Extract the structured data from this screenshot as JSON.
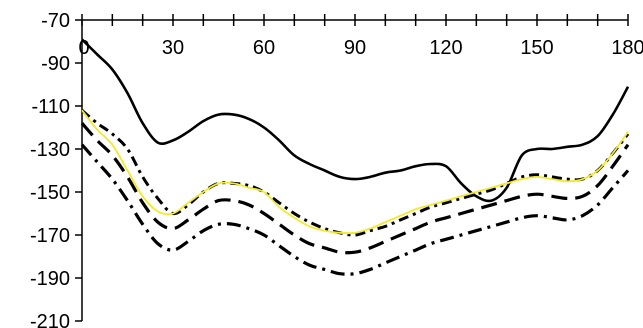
{
  "chart_data": {
    "type": "line",
    "title": "",
    "xlabel": "",
    "ylabel": "",
    "xlim": [
      0,
      180
    ],
    "ylim": [
      -210,
      -70
    ],
    "x_ticks": [
      0,
      30,
      60,
      90,
      120,
      150,
      180
    ],
    "y_ticks": [
      -70,
      -90,
      -110,
      -130,
      -150,
      -170,
      -190,
      -210
    ],
    "x_tick_labels": [
      "0",
      "30",
      "60",
      "90",
      "120",
      "150",
      "180"
    ],
    "y_tick_labels": [
      "-70",
      "-90",
      "-110",
      "-130",
      "-150",
      "-170",
      "-190",
      "-210"
    ],
    "x_minor_step": 10,
    "grid": false,
    "legend": "none",
    "series": [
      {
        "style": "solid",
        "color": "#000000",
        "points": [
          [
            0,
            -79
          ],
          [
            5,
            -86
          ],
          [
            10,
            -93
          ],
          [
            15,
            -104
          ],
          [
            20,
            -118
          ],
          [
            25,
            -127
          ],
          [
            30,
            -126
          ],
          [
            35,
            -122
          ],
          [
            40,
            -117
          ],
          [
            45,
            -114
          ],
          [
            50,
            -114
          ],
          [
            55,
            -116
          ],
          [
            60,
            -120
          ],
          [
            65,
            -126
          ],
          [
            70,
            -133
          ],
          [
            75,
            -137
          ],
          [
            80,
            -140
          ],
          [
            85,
            -143
          ],
          [
            90,
            -144
          ],
          [
            95,
            -143
          ],
          [
            100,
            -141
          ],
          [
            105,
            -140
          ],
          [
            110,
            -138
          ],
          [
            115,
            -137
          ],
          [
            120,
            -138
          ],
          [
            125,
            -146
          ],
          [
            130,
            -152
          ],
          [
            135,
            -154
          ],
          [
            140,
            -148
          ],
          [
            145,
            -133
          ],
          [
            150,
            -130
          ],
          [
            155,
            -130
          ],
          [
            160,
            -129
          ],
          [
            165,
            -128
          ],
          [
            170,
            -124
          ],
          [
            175,
            -114
          ],
          [
            180,
            -101
          ]
        ]
      },
      {
        "style": "solid",
        "color": "#f2ea2a",
        "points": [
          [
            0,
            -112
          ],
          [
            5,
            -121
          ],
          [
            10,
            -128
          ],
          [
            15,
            -140
          ],
          [
            20,
            -152
          ],
          [
            25,
            -159
          ],
          [
            30,
            -160
          ],
          [
            35,
            -155
          ],
          [
            40,
            -150
          ],
          [
            45,
            -146
          ],
          [
            50,
            -146
          ],
          [
            55,
            -148
          ],
          [
            60,
            -150
          ],
          [
            65,
            -157
          ],
          [
            70,
            -162
          ],
          [
            75,
            -166
          ],
          [
            80,
            -168
          ],
          [
            85,
            -169
          ],
          [
            90,
            -169
          ],
          [
            95,
            -167
          ],
          [
            100,
            -164
          ],
          [
            105,
            -161
          ],
          [
            110,
            -158
          ],
          [
            115,
            -156
          ],
          [
            120,
            -154
          ],
          [
            125,
            -152
          ],
          [
            130,
            -150
          ],
          [
            135,
            -148
          ],
          [
            140,
            -146
          ],
          [
            145,
            -144
          ],
          [
            150,
            -143
          ],
          [
            155,
            -144
          ],
          [
            160,
            -145
          ],
          [
            165,
            -144
          ],
          [
            170,
            -140
          ],
          [
            175,
            -132
          ],
          [
            180,
            -122
          ]
        ]
      },
      {
        "style": "dash-dot",
        "color": "#000000",
        "points": [
          [
            0,
            -112
          ],
          [
            5,
            -118
          ],
          [
            10,
            -123
          ],
          [
            15,
            -130
          ],
          [
            20,
            -143
          ],
          [
            25,
            -153
          ],
          [
            30,
            -160
          ],
          [
            35,
            -156
          ],
          [
            40,
            -150
          ],
          [
            45,
            -146
          ],
          [
            50,
            -146
          ],
          [
            55,
            -147
          ],
          [
            60,
            -150
          ],
          [
            65,
            -155
          ],
          [
            70,
            -160
          ],
          [
            75,
            -164
          ],
          [
            80,
            -167
          ],
          [
            85,
            -169
          ],
          [
            90,
            -170
          ],
          [
            95,
            -168
          ],
          [
            100,
            -166
          ],
          [
            105,
            -163
          ],
          [
            110,
            -160
          ],
          [
            115,
            -157
          ],
          [
            120,
            -155
          ],
          [
            125,
            -153
          ],
          [
            130,
            -151
          ],
          [
            135,
            -149
          ],
          [
            140,
            -146
          ],
          [
            145,
            -143
          ],
          [
            150,
            -142
          ],
          [
            155,
            -143
          ],
          [
            160,
            -144
          ],
          [
            165,
            -144
          ],
          [
            170,
            -140
          ],
          [
            175,
            -132
          ],
          [
            180,
            -123
          ]
        ]
      },
      {
        "style": "long-dash",
        "color": "#000000",
        "points": [
          [
            0,
            -118
          ],
          [
            5,
            -126
          ],
          [
            10,
            -133
          ],
          [
            15,
            -143
          ],
          [
            20,
            -155
          ],
          [
            25,
            -164
          ],
          [
            30,
            -167
          ],
          [
            35,
            -163
          ],
          [
            40,
            -158
          ],
          [
            45,
            -154
          ],
          [
            50,
            -154
          ],
          [
            55,
            -156
          ],
          [
            60,
            -160
          ],
          [
            65,
            -165
          ],
          [
            70,
            -170
          ],
          [
            75,
            -174
          ],
          [
            80,
            -176
          ],
          [
            85,
            -178
          ],
          [
            90,
            -178
          ],
          [
            95,
            -176
          ],
          [
            100,
            -173
          ],
          [
            105,
            -170
          ],
          [
            110,
            -167
          ],
          [
            115,
            -164
          ],
          [
            120,
            -162
          ],
          [
            125,
            -160
          ],
          [
            130,
            -158
          ],
          [
            135,
            -156
          ],
          [
            140,
            -154
          ],
          [
            145,
            -152
          ],
          [
            150,
            -151
          ],
          [
            155,
            -152
          ],
          [
            160,
            -153
          ],
          [
            165,
            -152
          ],
          [
            170,
            -147
          ],
          [
            175,
            -138
          ],
          [
            180,
            -128
          ]
        ]
      },
      {
        "style": "dash-dot-long",
        "color": "#000000",
        "points": [
          [
            0,
            -128
          ],
          [
            5,
            -136
          ],
          [
            10,
            -144
          ],
          [
            15,
            -154
          ],
          [
            20,
            -165
          ],
          [
            25,
            -174
          ],
          [
            30,
            -177
          ],
          [
            35,
            -173
          ],
          [
            40,
            -168
          ],
          [
            45,
            -165
          ],
          [
            50,
            -165
          ],
          [
            55,
            -167
          ],
          [
            60,
            -170
          ],
          [
            65,
            -175
          ],
          [
            70,
            -180
          ],
          [
            75,
            -184
          ],
          [
            80,
            -186
          ],
          [
            85,
            -188
          ],
          [
            90,
            -188
          ],
          [
            95,
            -186
          ],
          [
            100,
            -183
          ],
          [
            105,
            -180
          ],
          [
            110,
            -177
          ],
          [
            115,
            -174
          ],
          [
            120,
            -172
          ],
          [
            125,
            -170
          ],
          [
            130,
            -168
          ],
          [
            135,
            -166
          ],
          [
            140,
            -164
          ],
          [
            145,
            -162
          ],
          [
            150,
            -161
          ],
          [
            155,
            -162
          ],
          [
            160,
            -163
          ],
          [
            165,
            -161
          ],
          [
            170,
            -156
          ],
          [
            175,
            -148
          ],
          [
            180,
            -140
          ]
        ]
      }
    ]
  }
}
